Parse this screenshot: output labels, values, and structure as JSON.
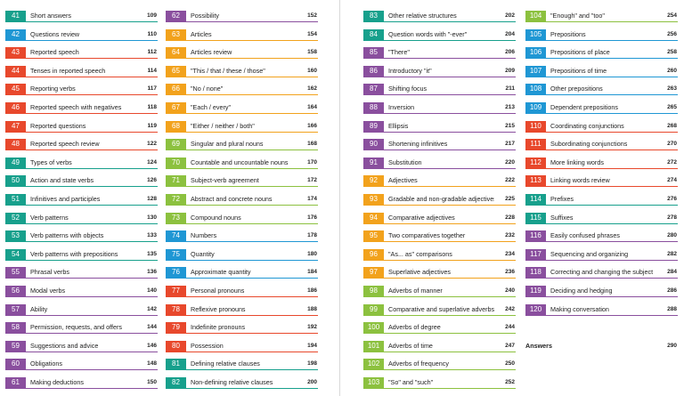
{
  "colors": {
    "blue": "#1f97d4",
    "red": "#e8482c",
    "green": "#4fae45",
    "teal": "#17a08c",
    "purple": "#8a4f9e",
    "orange": "#f2a21c",
    "lime": "#8cc13f"
  },
  "columns": [
    [
      {
        "num": "41",
        "title": "Short answers",
        "page": "109",
        "color": "teal"
      },
      {
        "num": "42",
        "title": "Questions review",
        "page": "110",
        "color": "blue"
      },
      {
        "num": "43",
        "title": "Reported speech",
        "page": "112",
        "color": "red"
      },
      {
        "num": "44",
        "title": "Tenses in reported speech",
        "page": "114",
        "color": "red"
      },
      {
        "num": "45",
        "title": "Reporting verbs",
        "page": "117",
        "color": "red"
      },
      {
        "num": "46",
        "title": "Reported speech with negatives",
        "page": "118",
        "color": "red"
      },
      {
        "num": "47",
        "title": "Reported questions",
        "page": "119",
        "color": "red"
      },
      {
        "num": "48",
        "title": "Reported speech review",
        "page": "122",
        "color": "red"
      },
      {
        "num": "49",
        "title": "Types of verbs",
        "page": "124",
        "color": "teal"
      },
      {
        "num": "50",
        "title": "Action and state verbs",
        "page": "126",
        "color": "teal"
      },
      {
        "num": "51",
        "title": "Infinitives and participles",
        "page": "128",
        "color": "teal"
      },
      {
        "num": "52",
        "title": "Verb patterns",
        "page": "130",
        "color": "teal"
      },
      {
        "num": "53",
        "title": "Verb patterns with objects",
        "page": "133",
        "color": "teal"
      },
      {
        "num": "54",
        "title": "Verb patterns with prepositions",
        "page": "135",
        "color": "teal"
      },
      {
        "num": "55",
        "title": "Phrasal verbs",
        "page": "136",
        "color": "purple"
      },
      {
        "num": "56",
        "title": "Modal verbs",
        "page": "140",
        "color": "purple"
      },
      {
        "num": "57",
        "title": "Ability",
        "page": "142",
        "color": "purple"
      },
      {
        "num": "58",
        "title": "Permission, requests, and offers",
        "page": "144",
        "color": "purple"
      },
      {
        "num": "59",
        "title": "Suggestions and advice",
        "page": "146",
        "color": "purple"
      },
      {
        "num": "60",
        "title": "Obligations",
        "page": "148",
        "color": "purple"
      },
      {
        "num": "61",
        "title": "Making deductions",
        "page": "150",
        "color": "purple"
      }
    ],
    [
      {
        "num": "62",
        "title": "Possibility",
        "page": "152",
        "color": "purple"
      },
      {
        "num": "63",
        "title": "Articles",
        "page": "154",
        "color": "orange"
      },
      {
        "num": "64",
        "title": "Articles review",
        "page": "158",
        "color": "orange"
      },
      {
        "num": "65",
        "title": "\"This / that / these / those\"",
        "page": "160",
        "color": "orange"
      },
      {
        "num": "66",
        "title": "\"No / none\"",
        "page": "162",
        "color": "orange"
      },
      {
        "num": "67",
        "title": "\"Each / every\"",
        "page": "164",
        "color": "orange"
      },
      {
        "num": "68",
        "title": "\"Either / neither / both\"",
        "page": "166",
        "color": "orange"
      },
      {
        "num": "69",
        "title": "Singular and plural nouns",
        "page": "168",
        "color": "lime"
      },
      {
        "num": "70",
        "title": "Countable and uncountable nouns",
        "page": "170",
        "color": "lime"
      },
      {
        "num": "71",
        "title": "Subject-verb agreement",
        "page": "172",
        "color": "lime"
      },
      {
        "num": "72",
        "title": "Abstract and concrete nouns",
        "page": "174",
        "color": "lime"
      },
      {
        "num": "73",
        "title": "Compound nouns",
        "page": "176",
        "color": "lime"
      },
      {
        "num": "74",
        "title": "Numbers",
        "page": "178",
        "color": "blue"
      },
      {
        "num": "75",
        "title": "Quantity",
        "page": "180",
        "color": "blue"
      },
      {
        "num": "76",
        "title": "Approximate quantity",
        "page": "184",
        "color": "blue"
      },
      {
        "num": "77",
        "title": "Personal pronouns",
        "page": "186",
        "color": "red"
      },
      {
        "num": "78",
        "title": "Reflexive pronouns",
        "page": "188",
        "color": "red"
      },
      {
        "num": "79",
        "title": "Indefinite pronouns",
        "page": "192",
        "color": "red"
      },
      {
        "num": "80",
        "title": "Possession",
        "page": "194",
        "color": "red"
      },
      {
        "num": "81",
        "title": "Defining relative clauses",
        "page": "198",
        "color": "teal"
      },
      {
        "num": "82",
        "title": "Non-defining relative clauses",
        "page": "200",
        "color": "teal"
      }
    ],
    [
      {
        "num": "83",
        "title": "Other relative structures",
        "page": "202",
        "color": "teal"
      },
      {
        "num": "84",
        "title": "Question words with \"-ever\"",
        "page": "204",
        "color": "teal"
      },
      {
        "num": "85",
        "title": "\"There\"",
        "page": "206",
        "color": "purple"
      },
      {
        "num": "86",
        "title": "Introductory \"it\"",
        "page": "209",
        "color": "purple"
      },
      {
        "num": "87",
        "title": "Shifting focus",
        "page": "211",
        "color": "purple"
      },
      {
        "num": "88",
        "title": "Inversion",
        "page": "213",
        "color": "purple"
      },
      {
        "num": "89",
        "title": "Ellipsis",
        "page": "215",
        "color": "purple"
      },
      {
        "num": "90",
        "title": "Shortening infinitives",
        "page": "217",
        "color": "purple"
      },
      {
        "num": "91",
        "title": "Substitution",
        "page": "220",
        "color": "purple"
      },
      {
        "num": "92",
        "title": "Adjectives",
        "page": "222",
        "color": "orange"
      },
      {
        "num": "93",
        "title": "Gradable and non-gradable adjectives",
        "page": "225",
        "color": "orange"
      },
      {
        "num": "94",
        "title": "Comparative adjectives",
        "page": "228",
        "color": "orange"
      },
      {
        "num": "95",
        "title": "Two comparatives together",
        "page": "232",
        "color": "orange"
      },
      {
        "num": "96",
        "title": "\"As... as\" comparisons",
        "page": "234",
        "color": "orange"
      },
      {
        "num": "97",
        "title": "Superlative adjectives",
        "page": "236",
        "color": "orange"
      },
      {
        "num": "98",
        "title": "Adverbs of manner",
        "page": "240",
        "color": "lime"
      },
      {
        "num": "99",
        "title": "Comparative and superlative adverbs",
        "page": "242",
        "color": "lime"
      },
      {
        "num": "100",
        "title": "Adverbs of degree",
        "page": "244",
        "color": "lime"
      },
      {
        "num": "101",
        "title": "Adverbs of time",
        "page": "247",
        "color": "lime"
      },
      {
        "num": "102",
        "title": "Adverbs of frequency",
        "page": "250",
        "color": "lime"
      },
      {
        "num": "103",
        "title": "\"So\" and \"such\"",
        "page": "252",
        "color": "lime"
      }
    ],
    [
      {
        "num": "104",
        "title": "\"Enough\" and \"too\"",
        "page": "254",
        "color": "lime"
      },
      {
        "num": "105",
        "title": "Prepositions",
        "page": "256",
        "color": "blue"
      },
      {
        "num": "106",
        "title": "Prepositions of place",
        "page": "258",
        "color": "blue"
      },
      {
        "num": "107",
        "title": "Prepositions of time",
        "page": "260",
        "color": "blue"
      },
      {
        "num": "108",
        "title": "Other prepositions",
        "page": "263",
        "color": "blue"
      },
      {
        "num": "109",
        "title": "Dependent prepositions",
        "page": "265",
        "color": "blue"
      },
      {
        "num": "110",
        "title": "Coordinating conjunctions",
        "page": "268",
        "color": "red"
      },
      {
        "num": "111",
        "title": "Subordinating conjunctions",
        "page": "270",
        "color": "red"
      },
      {
        "num": "112",
        "title": "More linking words",
        "page": "272",
        "color": "red"
      },
      {
        "num": "113",
        "title": "Linking words review",
        "page": "274",
        "color": "red"
      },
      {
        "num": "114",
        "title": "Prefixes",
        "page": "276",
        "color": "teal"
      },
      {
        "num": "115",
        "title": "Suffixes",
        "page": "278",
        "color": "teal"
      },
      {
        "num": "116",
        "title": "Easily confused phrases",
        "page": "280",
        "color": "purple"
      },
      {
        "num": "117",
        "title": "Sequencing and organizing",
        "page": "282",
        "color": "purple"
      },
      {
        "num": "118",
        "title": "Correcting and changing the subject",
        "page": "284",
        "color": "purple"
      },
      {
        "num": "119",
        "title": "Deciding and hedging",
        "page": "286",
        "color": "purple"
      },
      {
        "num": "120",
        "title": "Making conversation",
        "page": "288",
        "color": "purple"
      }
    ]
  ],
  "answers": {
    "title": "Answers",
    "page": "290"
  }
}
